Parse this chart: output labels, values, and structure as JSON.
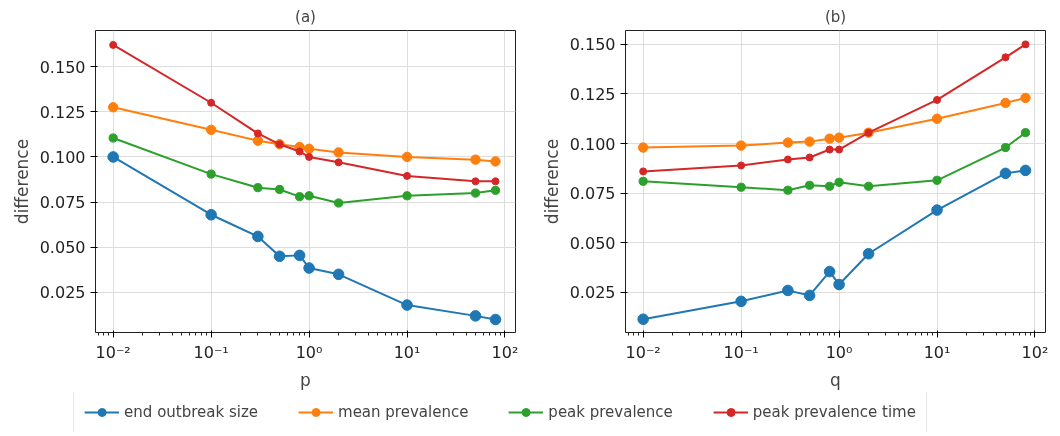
{
  "chart_data": [
    {
      "type": "line",
      "title": "(a)",
      "xlabel": "p",
      "ylabel": "difference",
      "log": "x",
      "grid": true,
      "marker": "circle",
      "legend": "bottom",
      "x": [
        0.01,
        0.1,
        0.3,
        0.5,
        0.8,
        1,
        2,
        10,
        50,
        80
      ],
      "xlim": [
        0.0066,
        128
      ],
      "ylim": [
        0.0028,
        0.17
      ],
      "xticks": [
        {
          "value": 0.01,
          "label": "10⁻²"
        },
        {
          "value": 0.1,
          "label": "10⁻¹"
        },
        {
          "value": 1,
          "label": "10⁰"
        },
        {
          "value": 10,
          "label": "10¹"
        },
        {
          "value": 100,
          "label": "10²"
        }
      ],
      "yticks": [
        {
          "value": 0.025,
          "label": "0.025"
        },
        {
          "value": 0.05,
          "label": "0.050"
        },
        {
          "value": 0.075,
          "label": "0.075"
        },
        {
          "value": 0.1,
          "label": "0.100"
        },
        {
          "value": 0.125,
          "label": "0.125"
        },
        {
          "value": 0.15,
          "label": "0.150"
        }
      ],
      "series": [
        {
          "name": "end outbreak size",
          "color": "#1f77b4",
          "values": [
            0.1,
            0.068,
            0.056,
            0.045,
            0.0455,
            0.0385,
            0.035,
            0.018,
            0.012,
            0.01
          ]
        },
        {
          "name": "mean prevalence",
          "color": "#ff7f0e",
          "values": [
            0.1275,
            0.115,
            0.109,
            0.107,
            0.1055,
            0.1045,
            0.1025,
            0.1,
            0.0985,
            0.0975
          ]
        },
        {
          "name": "peak prevalence",
          "color": "#2ca02c",
          "values": [
            0.1105,
            0.0905,
            0.083,
            0.082,
            0.078,
            0.0785,
            0.0745,
            0.0785,
            0.08,
            0.0815
          ]
        },
        {
          "name": "peak prevalence time",
          "color": "#d62728",
          "values": [
            0.162,
            0.13,
            0.113,
            0.107,
            0.103,
            0.1,
            0.097,
            0.0895,
            0.0865,
            0.0865
          ]
        }
      ]
    },
    {
      "type": "line",
      "title": "(b)",
      "xlabel": "q",
      "ylabel": "difference",
      "log": "x",
      "grid": true,
      "marker": "circle",
      "x": [
        0.01,
        0.1,
        0.3,
        0.5,
        0.8,
        1,
        2,
        10,
        50,
        80
      ],
      "xlim": [
        0.0066,
        128
      ],
      "ylim": [
        0.0048,
        0.157
      ],
      "xticks": [
        {
          "value": 0.01,
          "label": "10⁻²"
        },
        {
          "value": 0.1,
          "label": "10⁻¹"
        },
        {
          "value": 1,
          "label": "10⁰"
        },
        {
          "value": 10,
          "label": "10¹"
        },
        {
          "value": 100,
          "label": "10²"
        }
      ],
      "yticks": [
        {
          "value": 0.025,
          "label": "0.025"
        },
        {
          "value": 0.05,
          "label": "0.050"
        },
        {
          "value": 0.075,
          "label": "0.075"
        },
        {
          "value": 0.1,
          "label": "0.100"
        },
        {
          "value": 0.125,
          "label": "0.125"
        },
        {
          "value": 0.15,
          "label": "0.150"
        }
      ],
      "series": [
        {
          "color": "#1f77b4",
          "values": [
            0.0115,
            0.0205,
            0.026,
            0.0235,
            0.0355,
            0.029,
            0.0445,
            0.0665,
            0.085,
            0.0865
          ]
        },
        {
          "color": "#ff7f0e",
          "values": [
            0.098,
            0.099,
            0.1005,
            0.101,
            0.1025,
            0.103,
            0.1055,
            0.1125,
            0.1205,
            0.123
          ]
        },
        {
          "color": "#2ca02c",
          "values": [
            0.081,
            0.078,
            0.0765,
            0.079,
            0.0785,
            0.0805,
            0.0785,
            0.0815,
            0.098,
            0.1055
          ]
        },
        {
          "color": "#d62728",
          "values": [
            0.086,
            0.089,
            0.092,
            0.093,
            0.097,
            0.097,
            0.1055,
            0.122,
            0.1435,
            0.15
          ]
        }
      ]
    }
  ]
}
